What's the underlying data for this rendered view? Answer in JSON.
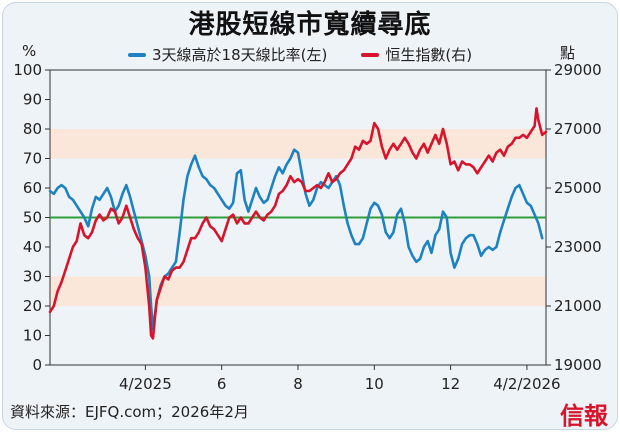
{
  "title": "港股短線市寬續尋底",
  "source": "資料來源：EJFQ.com；2026年2月",
  "logo": "信報",
  "colors": {
    "blue": "#1f82c0",
    "red": "#d6142b",
    "green": "#2e9e3a",
    "band": "#fbe6da"
  },
  "chart_data": {
    "type": "line",
    "y_left_unit": "%",
    "y_right_unit": "點",
    "y_left_ticks": [
      "0",
      "10",
      "20",
      "30",
      "40",
      "50",
      "60",
      "70",
      "80",
      "90",
      "100"
    ],
    "y_right_ticks": [
      "19000",
      "21000",
      "23000",
      "25000",
      "27000",
      "29000"
    ],
    "ylim_left": [
      0,
      100
    ],
    "ylim_right": [
      19000,
      29000
    ],
    "x_range": [
      0,
      13.0
    ],
    "x_ticks": [
      {
        "label": "4/2025",
        "value": 2.5
      },
      {
        "label": "6",
        "value": 4.5
      },
      {
        "label": "8",
        "value": 6.5
      },
      {
        "label": "10",
        "value": 8.5
      },
      {
        "label": "12",
        "value": 10.5
      },
      {
        "label": "4/2/2026",
        "value": 12.5
      }
    ],
    "reference_line": {
      "value": 50,
      "axis": "left"
    },
    "shaded_bands": [
      [
        20,
        30
      ],
      [
        70,
        80
      ]
    ],
    "series": [
      {
        "name": "3天線高於18天線比率(左)",
        "axis": "left",
        "color": "#1f82c0",
        "points": [
          [
            0.0,
            59
          ],
          [
            0.1,
            58
          ],
          [
            0.2,
            60
          ],
          [
            0.3,
            61
          ],
          [
            0.4,
            60
          ],
          [
            0.5,
            57
          ],
          [
            0.6,
            56
          ],
          [
            0.7,
            54
          ],
          [
            0.8,
            52
          ],
          [
            0.9,
            50
          ],
          [
            1.0,
            47
          ],
          [
            1.1,
            53
          ],
          [
            1.2,
            57
          ],
          [
            1.3,
            56
          ],
          [
            1.4,
            58
          ],
          [
            1.5,
            60
          ],
          [
            1.6,
            57
          ],
          [
            1.7,
            52
          ],
          [
            1.8,
            54
          ],
          [
            1.9,
            58
          ],
          [
            2.0,
            61
          ],
          [
            2.1,
            57
          ],
          [
            2.2,
            52
          ],
          [
            2.3,
            47
          ],
          [
            2.4,
            42
          ],
          [
            2.5,
            37
          ],
          [
            2.6,
            30
          ],
          [
            2.65,
            20
          ],
          [
            2.7,
            12
          ],
          [
            2.75,
            17
          ],
          [
            2.8,
            22
          ],
          [
            2.9,
            27
          ],
          [
            3.0,
            30
          ],
          [
            3.1,
            31
          ],
          [
            3.2,
            33
          ],
          [
            3.3,
            35
          ],
          [
            3.4,
            45
          ],
          [
            3.5,
            56
          ],
          [
            3.6,
            64
          ],
          [
            3.7,
            68
          ],
          [
            3.8,
            71
          ],
          [
            3.9,
            67
          ],
          [
            4.0,
            64
          ],
          [
            4.1,
            63
          ],
          [
            4.2,
            61
          ],
          [
            4.3,
            60
          ],
          [
            4.4,
            58
          ],
          [
            4.5,
            56
          ],
          [
            4.6,
            54
          ],
          [
            4.7,
            53
          ],
          [
            4.8,
            55
          ],
          [
            4.9,
            65
          ],
          [
            5.0,
            66
          ],
          [
            5.1,
            56
          ],
          [
            5.2,
            52
          ],
          [
            5.3,
            56
          ],
          [
            5.4,
            60
          ],
          [
            5.5,
            57
          ],
          [
            5.6,
            55
          ],
          [
            5.7,
            56
          ],
          [
            5.8,
            60
          ],
          [
            5.9,
            64
          ],
          [
            6.0,
            67
          ],
          [
            6.1,
            65
          ],
          [
            6.2,
            68
          ],
          [
            6.3,
            70
          ],
          [
            6.4,
            73
          ],
          [
            6.5,
            72
          ],
          [
            6.6,
            65
          ],
          [
            6.7,
            58
          ],
          [
            6.8,
            54
          ],
          [
            6.9,
            56
          ],
          [
            7.0,
            60
          ],
          [
            7.1,
            62
          ],
          [
            7.2,
            61
          ],
          [
            7.3,
            60
          ],
          [
            7.4,
            62
          ],
          [
            7.5,
            64
          ],
          [
            7.6,
            61
          ],
          [
            7.7,
            54
          ],
          [
            7.8,
            48
          ],
          [
            7.9,
            44
          ],
          [
            8.0,
            41
          ],
          [
            8.1,
            41
          ],
          [
            8.2,
            43
          ],
          [
            8.3,
            48
          ],
          [
            8.4,
            53
          ],
          [
            8.5,
            55
          ],
          [
            8.6,
            54
          ],
          [
            8.7,
            51
          ],
          [
            8.8,
            45
          ],
          [
            8.9,
            43
          ],
          [
            9.0,
            45
          ],
          [
            9.1,
            51
          ],
          [
            9.2,
            53
          ],
          [
            9.3,
            48
          ],
          [
            9.4,
            40
          ],
          [
            9.5,
            37
          ],
          [
            9.6,
            35
          ],
          [
            9.7,
            36
          ],
          [
            9.8,
            40
          ],
          [
            9.9,
            42
          ],
          [
            10.0,
            38
          ],
          [
            10.1,
            44
          ],
          [
            10.2,
            46
          ],
          [
            10.3,
            52
          ],
          [
            10.4,
            50
          ],
          [
            10.5,
            38
          ],
          [
            10.6,
            33
          ],
          [
            10.7,
            36
          ],
          [
            10.8,
            41
          ],
          [
            10.9,
            43
          ],
          [
            11.0,
            44
          ],
          [
            11.1,
            44
          ],
          [
            11.2,
            41
          ],
          [
            11.3,
            37
          ],
          [
            11.4,
            39
          ],
          [
            11.5,
            40
          ],
          [
            11.6,
            39
          ],
          [
            11.7,
            40
          ],
          [
            11.8,
            45
          ],
          [
            11.9,
            49
          ],
          [
            12.0,
            53
          ],
          [
            12.1,
            57
          ],
          [
            12.2,
            60
          ],
          [
            12.3,
            61
          ],
          [
            12.4,
            58
          ],
          [
            12.5,
            55
          ],
          [
            12.6,
            54
          ],
          [
            12.7,
            51
          ],
          [
            12.8,
            48
          ],
          [
            12.9,
            43
          ]
        ]
      },
      {
        "name": "恒生指數(右)",
        "axis": "right",
        "color": "#d6142b",
        "points": [
          [
            0.0,
            20800
          ],
          [
            0.1,
            21000
          ],
          [
            0.2,
            21500
          ],
          [
            0.3,
            21800
          ],
          [
            0.4,
            22200
          ],
          [
            0.5,
            22600
          ],
          [
            0.6,
            23000
          ],
          [
            0.7,
            23200
          ],
          [
            0.8,
            23800
          ],
          [
            0.9,
            23400
          ],
          [
            1.0,
            23300
          ],
          [
            1.1,
            23500
          ],
          [
            1.2,
            23900
          ],
          [
            1.3,
            24100
          ],
          [
            1.4,
            23900
          ],
          [
            1.5,
            24000
          ],
          [
            1.6,
            24300
          ],
          [
            1.7,
            24200
          ],
          [
            1.8,
            23800
          ],
          [
            1.9,
            24000
          ],
          [
            2.0,
            24400
          ],
          [
            2.1,
            24000
          ],
          [
            2.2,
            23600
          ],
          [
            2.3,
            23300
          ],
          [
            2.4,
            23100
          ],
          [
            2.5,
            22300
          ],
          [
            2.6,
            21000
          ],
          [
            2.65,
            20000
          ],
          [
            2.7,
            19900
          ],
          [
            2.75,
            20600
          ],
          [
            2.8,
            21200
          ],
          [
            2.9,
            21600
          ],
          [
            3.0,
            22000
          ],
          [
            3.1,
            21900
          ],
          [
            3.2,
            22200
          ],
          [
            3.3,
            22300
          ],
          [
            3.4,
            22300
          ],
          [
            3.5,
            22500
          ],
          [
            3.6,
            22900
          ],
          [
            3.7,
            23300
          ],
          [
            3.8,
            23300
          ],
          [
            3.9,
            23500
          ],
          [
            4.0,
            23800
          ],
          [
            4.1,
            24000
          ],
          [
            4.2,
            23700
          ],
          [
            4.3,
            23600
          ],
          [
            4.4,
            23400
          ],
          [
            4.5,
            23200
          ],
          [
            4.6,
            23600
          ],
          [
            4.7,
            24000
          ],
          [
            4.8,
            24100
          ],
          [
            4.9,
            23800
          ],
          [
            5.0,
            24000
          ],
          [
            5.1,
            23800
          ],
          [
            5.2,
            23800
          ],
          [
            5.3,
            24000
          ],
          [
            5.4,
            24200
          ],
          [
            5.5,
            24000
          ],
          [
            5.6,
            23900
          ],
          [
            5.7,
            24100
          ],
          [
            5.8,
            24200
          ],
          [
            5.9,
            24400
          ],
          [
            6.0,
            24800
          ],
          [
            6.1,
            24900
          ],
          [
            6.2,
            25100
          ],
          [
            6.3,
            25400
          ],
          [
            6.4,
            25200
          ],
          [
            6.5,
            25300
          ],
          [
            6.6,
            25200
          ],
          [
            6.7,
            24900
          ],
          [
            6.8,
            24900
          ],
          [
            6.9,
            25000
          ],
          [
            7.0,
            25100
          ],
          [
            7.1,
            25000
          ],
          [
            7.2,
            25200
          ],
          [
            7.3,
            25500
          ],
          [
            7.4,
            25200
          ],
          [
            7.5,
            25300
          ],
          [
            7.6,
            25500
          ],
          [
            7.7,
            25600
          ],
          [
            7.8,
            25800
          ],
          [
            7.9,
            26000
          ],
          [
            8.0,
            26400
          ],
          [
            8.1,
            26300
          ],
          [
            8.2,
            26600
          ],
          [
            8.3,
            26500
          ],
          [
            8.4,
            26600
          ],
          [
            8.5,
            27200
          ],
          [
            8.6,
            27000
          ],
          [
            8.7,
            26400
          ],
          [
            8.8,
            26000
          ],
          [
            8.9,
            26300
          ],
          [
            9.0,
            26500
          ],
          [
            9.1,
            26300
          ],
          [
            9.2,
            26500
          ],
          [
            9.3,
            26700
          ],
          [
            9.4,
            26500
          ],
          [
            9.5,
            26200
          ],
          [
            9.6,
            26000
          ],
          [
            9.7,
            26300
          ],
          [
            9.8,
            26500
          ],
          [
            9.9,
            26200
          ],
          [
            10.0,
            26500
          ],
          [
            10.1,
            26800
          ],
          [
            10.2,
            26500
          ],
          [
            10.3,
            27000
          ],
          [
            10.4,
            26500
          ],
          [
            10.5,
            25800
          ],
          [
            10.6,
            25900
          ],
          [
            10.7,
            25600
          ],
          [
            10.8,
            25900
          ],
          [
            10.9,
            25800
          ],
          [
            11.0,
            25800
          ],
          [
            11.1,
            25700
          ],
          [
            11.2,
            25500
          ],
          [
            11.3,
            25700
          ],
          [
            11.4,
            25900
          ],
          [
            11.5,
            26100
          ],
          [
            11.6,
            25900
          ],
          [
            11.7,
            26200
          ],
          [
            11.8,
            26300
          ],
          [
            11.9,
            26100
          ],
          [
            12.0,
            26400
          ],
          [
            12.1,
            26500
          ],
          [
            12.2,
            26700
          ],
          [
            12.3,
            26700
          ],
          [
            12.4,
            26800
          ],
          [
            12.5,
            26700
          ],
          [
            12.6,
            26900
          ],
          [
            12.7,
            27100
          ],
          [
            12.75,
            27700
          ],
          [
            12.8,
            27300
          ],
          [
            12.9,
            26800
          ],
          [
            13.0,
            26900
          ]
        ]
      }
    ]
  }
}
